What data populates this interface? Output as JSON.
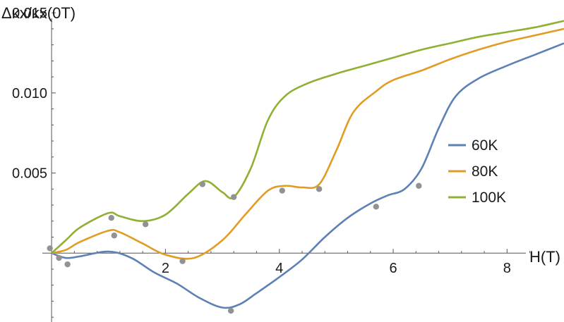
{
  "chart_data": {
    "type": "line",
    "title": "",
    "xlabel": "H(T)",
    "ylabel": "Δκx/κx(0T)",
    "xlim": [
      -0.1,
      9.0
    ],
    "ylim": [
      -0.0043,
      0.0158
    ],
    "x_ticks": [
      2,
      4,
      6,
      8
    ],
    "y_ticks": [
      0.005,
      0.01,
      0.015
    ],
    "x_tick_labels": [
      "2",
      "4",
      "6",
      "8"
    ],
    "y_tick_labels": [
      "0.005",
      "0.010",
      "0.015"
    ],
    "grid": false,
    "legend_position": "right",
    "series": [
      {
        "name": "60K",
        "color": "#5d81b4",
        "x": [
          0,
          0.25,
          0.5,
          1.0,
          1.4,
          1.8,
          2.2,
          2.6,
          3.0,
          3.3,
          3.6,
          4.0,
          4.4,
          4.8,
          5.2,
          5.6,
          5.9,
          6.2,
          6.5,
          6.8,
          7.1,
          7.5,
          8.0,
          8.5,
          9.0
        ],
        "y": [
          0,
          -0.0003,
          -0.0002,
          0.0001,
          -0.0003,
          -0.0012,
          -0.0019,
          -0.0028,
          -0.0034,
          -0.0032,
          -0.0025,
          -0.0015,
          -0.0004,
          0.001,
          0.0022,
          0.0031,
          0.0036,
          0.004,
          0.0053,
          0.0078,
          0.0098,
          0.0109,
          0.0117,
          0.0124,
          0.0131
        ]
      },
      {
        "name": "80K",
        "color": "#e19c24",
        "x": [
          0,
          0.25,
          0.5,
          1.0,
          1.2,
          1.6,
          2.0,
          2.5,
          3.0,
          3.4,
          3.8,
          4.1,
          4.4,
          4.7,
          5.0,
          5.3,
          5.7,
          6.0,
          6.5,
          7.0,
          7.5,
          8.0,
          8.5,
          9.0
        ],
        "y": [
          0,
          0.0002,
          0.0007,
          0.0014,
          0.0013,
          0.0006,
          -0.0001,
          -0.0003,
          0.0008,
          0.0024,
          0.0039,
          0.0042,
          0.0041,
          0.0043,
          0.0064,
          0.0088,
          0.0101,
          0.0108,
          0.0114,
          0.0121,
          0.0127,
          0.0132,
          0.0136,
          0.014
        ]
      },
      {
        "name": "100K",
        "color": "#8fb032",
        "x": [
          0,
          0.25,
          0.5,
          1.0,
          1.2,
          1.6,
          2.0,
          2.4,
          2.7,
          3.0,
          3.2,
          3.5,
          3.8,
          4.1,
          4.5,
          5.0,
          5.5,
          6.0,
          6.5,
          7.0,
          7.5,
          8.0,
          8.5,
          9.0
        ],
        "y": [
          0,
          0.0008,
          0.0016,
          0.0025,
          0.0023,
          0.002,
          0.0024,
          0.0037,
          0.0045,
          0.0038,
          0.0035,
          0.0053,
          0.0083,
          0.0098,
          0.0106,
          0.0112,
          0.0117,
          0.0122,
          0.0127,
          0.0131,
          0.0135,
          0.0138,
          0.0141,
          0.0145
        ]
      }
    ],
    "points": {
      "color": "#929292",
      "x": [
        -0.03,
        0.13,
        0.28,
        1.05,
        1.1,
        1.65,
        2.3,
        2.65,
        3.15,
        3.2,
        4.05,
        4.7,
        5.7,
        6.45
      ],
      "y": [
        0.0003,
        -0.0003,
        -0.0007,
        0.0022,
        0.0011,
        0.0018,
        -0.0005,
        0.0043,
        -0.0036,
        0.0035,
        0.0039,
        0.004,
        0.0029,
        0.0042
      ]
    }
  }
}
